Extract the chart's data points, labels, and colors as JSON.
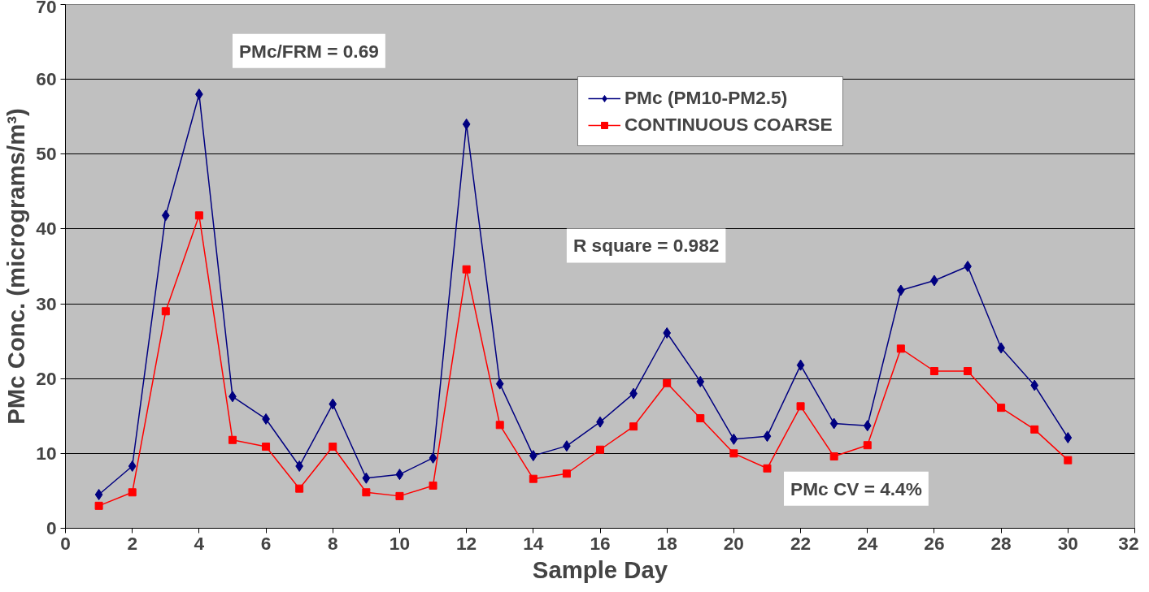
{
  "chart_data": {
    "type": "line",
    "xlabel": "Sample Day",
    "ylabel": "PMc Conc. (micrograms/m³)",
    "x": [
      1,
      2,
      3,
      4,
      5,
      6,
      7,
      8,
      9,
      10,
      11,
      12,
      13,
      14,
      15,
      16,
      17,
      18,
      19,
      20,
      21,
      22,
      23,
      24,
      25,
      26,
      27,
      28,
      29,
      30
    ],
    "series": [
      {
        "name": "PMc (PM10-PM2.5)",
        "color": "#000080",
        "marker": "diamond",
        "values": [
          4.5,
          8.3,
          41.8,
          58,
          17.6,
          14.6,
          8.3,
          16.6,
          6.7,
          7.2,
          9.4,
          54,
          19.3,
          9.7,
          11,
          14.2,
          18,
          26.1,
          19.6,
          11.9,
          12.3,
          21.8,
          14,
          13.7,
          31.8,
          33.1,
          35,
          24.1,
          19.1,
          12.1
        ]
      },
      {
        "name": "CONTINUOUS COARSE",
        "color": "#ff0000",
        "marker": "square",
        "values": [
          3,
          4.8,
          29,
          41.8,
          11.8,
          10.9,
          5.3,
          10.9,
          4.8,
          4.3,
          5.7,
          34.6,
          13.8,
          6.6,
          7.3,
          10.5,
          13.6,
          19.4,
          14.7,
          10,
          8,
          16.3,
          9.6,
          11.1,
          24,
          21,
          21,
          16.1,
          13.2,
          9.1
        ]
      }
    ],
    "xlim": [
      0,
      32
    ],
    "xticks": [
      0,
      2,
      4,
      6,
      8,
      10,
      12,
      14,
      16,
      18,
      20,
      22,
      24,
      26,
      28,
      30,
      32
    ],
    "ylim": [
      0,
      70
    ],
    "yticks": [
      0,
      10,
      20,
      30,
      40,
      50,
      60,
      70
    ],
    "grid": "y",
    "legend": "top right",
    "line_style": "solid",
    "annotations": [
      "PMc/FRM = 0.69",
      "R square = 0.982",
      "PMc CV = 4.4%"
    ]
  }
}
